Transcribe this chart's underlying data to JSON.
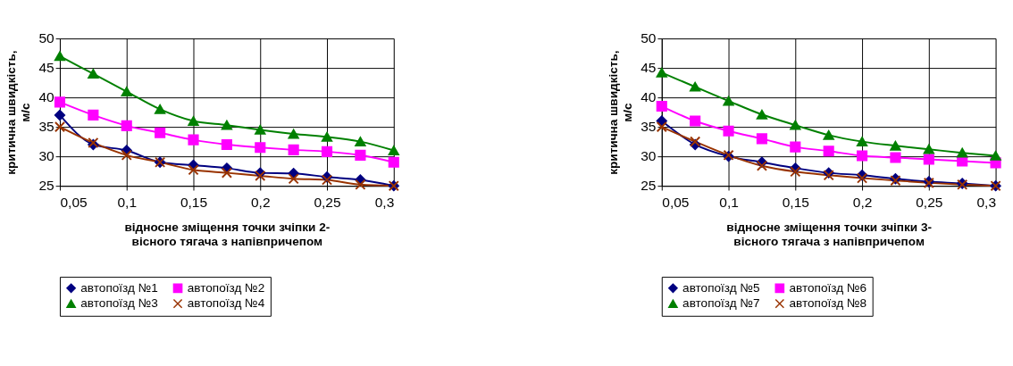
{
  "chart_data": [
    {
      "type": "line",
      "xlabel": "відносне зміщення точки зчіпки 2-\nвісного тягача з напівпричепом",
      "ylabel": "критична швидкість,\nм/с",
      "x": [
        0.05,
        0.075,
        0.1,
        0.125,
        0.15,
        0.175,
        0.2,
        0.225,
        0.25,
        0.275,
        0.3
      ],
      "xlim": [
        0.05,
        0.3
      ],
      "xticks": [
        {
          "value": 0.05,
          "label": "0,05"
        },
        {
          "value": 0.1,
          "label": "0,1"
        },
        {
          "value": 0.15,
          "label": "0,15"
        },
        {
          "value": 0.2,
          "label": "0,2"
        },
        {
          "value": 0.25,
          "label": "0,25"
        },
        {
          "value": 0.3,
          "label": "0,3"
        }
      ],
      "ylim": [
        25,
        50
      ],
      "yticks": [
        25,
        30,
        35,
        40,
        45,
        50
      ],
      "grid": true,
      "legend": "bottom",
      "line_style": "solid",
      "series": [
        {
          "name": "автопоїзд №1",
          "color": "#000080",
          "marker": "diamond",
          "values": [
            37,
            32,
            31,
            29,
            28.5,
            28,
            27.2,
            27.1,
            26.5,
            26,
            25
          ]
        },
        {
          "name": "автопоїзд №2",
          "color": "#ff00ff",
          "marker": "square",
          "values": [
            39.2,
            37,
            35.2,
            34,
            32.8,
            32,
            31.5,
            31.1,
            30.8,
            30.2,
            29
          ]
        },
        {
          "name": "автопоїзд №3",
          "color": "#008000",
          "marker": "triangle",
          "values": [
            47,
            44,
            41,
            38,
            36,
            35.3,
            34.5,
            33.8,
            33.3,
            32.5,
            31
          ]
        },
        {
          "name": "автопоїзд №4",
          "color": "#993300",
          "marker": "cross",
          "values": [
            35,
            32.3,
            30.2,
            29,
            27.7,
            27.2,
            26.7,
            26.2,
            26,
            25.2,
            25
          ]
        }
      ]
    },
    {
      "type": "line",
      "xlabel": "відносне зміщення точки зчіпки 3-\nвісного тягача з напівпричепом",
      "ylabel": "критична швидкість,\nм/с",
      "x": [
        0.05,
        0.075,
        0.1,
        0.125,
        0.15,
        0.175,
        0.2,
        0.225,
        0.25,
        0.275,
        0.3
      ],
      "xlim": [
        0.05,
        0.3
      ],
      "xticks": [
        {
          "value": 0.05,
          "label": "0,05"
        },
        {
          "value": 0.1,
          "label": "0,1"
        },
        {
          "value": 0.15,
          "label": "0,15"
        },
        {
          "value": 0.2,
          "label": "0,2"
        },
        {
          "value": 0.25,
          "label": "0,25"
        },
        {
          "value": 0.3,
          "label": "0,3"
        }
      ],
      "ylim": [
        25,
        50
      ],
      "yticks": [
        25,
        30,
        35,
        40,
        45,
        50
      ],
      "grid": true,
      "legend": "bottom",
      "line_style": "solid",
      "series": [
        {
          "name": "автопоїзд №5",
          "color": "#000080",
          "marker": "diamond",
          "values": [
            36,
            32,
            30,
            29,
            28,
            27.2,
            26.8,
            26.2,
            25.7,
            25.4,
            25
          ]
        },
        {
          "name": "автопоїзд №6",
          "color": "#ff00ff",
          "marker": "square",
          "values": [
            38.5,
            36,
            34.3,
            33,
            31.6,
            30.9,
            30.1,
            29.8,
            29.5,
            29.2,
            28.9
          ]
        },
        {
          "name": "автопоїзд №7",
          "color": "#008000",
          "marker": "triangle",
          "values": [
            44.2,
            41.8,
            39.4,
            37.1,
            35.3,
            33.6,
            32.5,
            31.8,
            31.2,
            30.6,
            30.1
          ]
        },
        {
          "name": "автопоїзд №8",
          "color": "#993300",
          "marker": "cross",
          "values": [
            35,
            32.5,
            30.2,
            28.4,
            27.4,
            26.8,
            26.3,
            25.9,
            25.5,
            25.2,
            25
          ]
        }
      ]
    }
  ]
}
